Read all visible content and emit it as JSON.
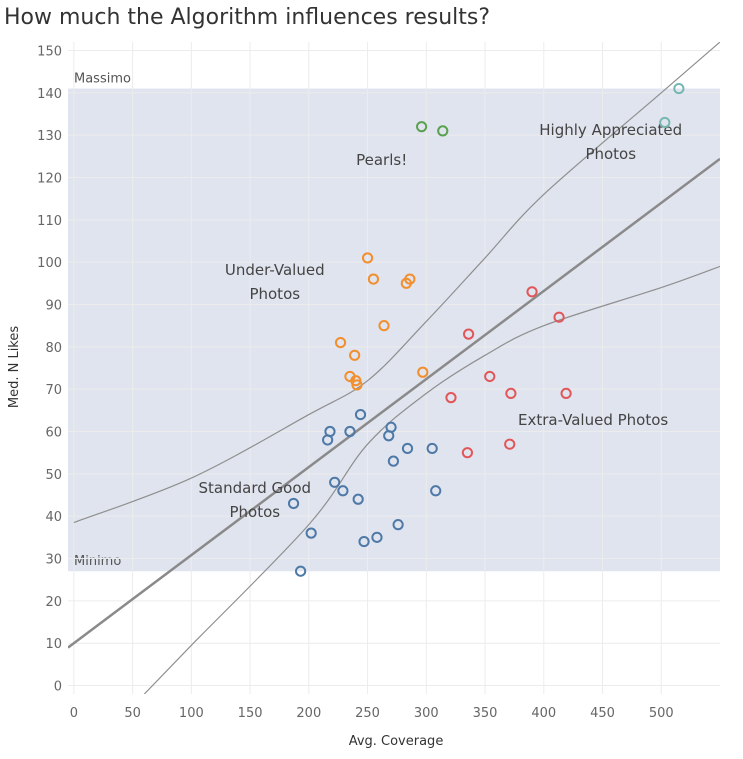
{
  "title": "How much the Algorithm influences results?",
  "chart_data": {
    "type": "scatter",
    "title": "How much the Algorithm influences results?",
    "xlabel": "Avg. Coverage",
    "ylabel": "Med. N Likes",
    "xlim": [
      -5,
      550
    ],
    "ylim": [
      -2,
      152
    ],
    "x_ticks": [
      0,
      50,
      100,
      150,
      200,
      250,
      300,
      350,
      400,
      450,
      500
    ],
    "y_ticks": [
      0,
      10,
      20,
      30,
      40,
      50,
      60,
      70,
      80,
      90,
      100,
      110,
      120,
      130,
      140,
      150
    ],
    "grid": true,
    "reference_band": {
      "from": 27,
      "to": 141,
      "color": "#e0e4ef",
      "upper_label": "Massimo",
      "lower_label": "Minimo"
    },
    "trend_line": {
      "intercept": 10,
      "slope": 0.208
    },
    "upper_curve": [
      [
        0,
        38.5
      ],
      [
        100,
        49
      ],
      [
        200,
        64
      ],
      [
        250,
        72
      ],
      [
        300,
        86
      ],
      [
        350,
        101
      ],
      [
        400,
        116
      ],
      [
        500,
        140
      ],
      [
        550,
        152
      ]
    ],
    "lower_curve": [
      [
        60,
        -2
      ],
      [
        100,
        9.5
      ],
      [
        200,
        38
      ],
      [
        250,
        57
      ],
      [
        300,
        69
      ],
      [
        350,
        78
      ],
      [
        400,
        85
      ],
      [
        500,
        94
      ],
      [
        550,
        99
      ]
    ],
    "series": [
      {
        "name": "Pearls!",
        "color": "#59a14f",
        "points": [
          [
            296,
            132
          ],
          [
            314,
            131
          ]
        ]
      },
      {
        "name": "Highly Appreciated Photos",
        "color": "#76b7b2",
        "points": [
          [
            515,
            141
          ],
          [
            503,
            133
          ]
        ]
      },
      {
        "name": "Under-Valued Photos",
        "color": "#f28e2b",
        "points": [
          [
            250,
            101
          ],
          [
            255,
            96
          ],
          [
            286,
            96
          ],
          [
            283,
            95
          ],
          [
            264,
            85
          ],
          [
            227,
            81
          ],
          [
            239,
            78
          ],
          [
            235,
            73
          ],
          [
            240,
            72
          ],
          [
            241,
            71
          ],
          [
            297,
            74
          ]
        ]
      },
      {
        "name": "Extra-Valued Photos",
        "color": "#e15759",
        "points": [
          [
            390,
            93
          ],
          [
            413,
            87
          ],
          [
            336,
            83
          ],
          [
            354,
            73
          ],
          [
            372,
            69
          ],
          [
            419,
            69
          ],
          [
            321,
            68
          ],
          [
            371,
            57
          ],
          [
            335,
            55
          ]
        ]
      },
      {
        "name": "Standard Good Photos",
        "color": "#4e79a7",
        "points": [
          [
            244,
            64
          ],
          [
            218,
            60
          ],
          [
            235,
            60
          ],
          [
            270,
            61
          ],
          [
            216,
            58
          ],
          [
            268,
            59
          ],
          [
            305,
            56
          ],
          [
            284,
            56
          ],
          [
            272,
            53
          ],
          [
            222,
            48
          ],
          [
            229,
            46
          ],
          [
            308,
            46
          ],
          [
            242,
            44
          ],
          [
            187,
            43
          ],
          [
            202,
            36
          ],
          [
            276,
            38
          ],
          [
            258,
            35
          ],
          [
            247,
            34
          ],
          [
            193,
            27
          ]
        ]
      }
    ],
    "annotations": [
      {
        "lines": [
          "Pearls!"
        ],
        "x": 262,
        "y": 123
      },
      {
        "lines": [
          "Highly Appreciated",
          "Photos"
        ],
        "x": 457,
        "y": 130
      },
      {
        "lines": [
          "Under-Valued",
          "Photos"
        ],
        "x": 171,
        "y": 97
      },
      {
        "lines": [
          "Extra-Valued Photos"
        ],
        "x": 442,
        "y": 61.5
      },
      {
        "lines": [
          "Standard Good",
          "Photos"
        ],
        "x": 154,
        "y": 45.5
      }
    ]
  }
}
